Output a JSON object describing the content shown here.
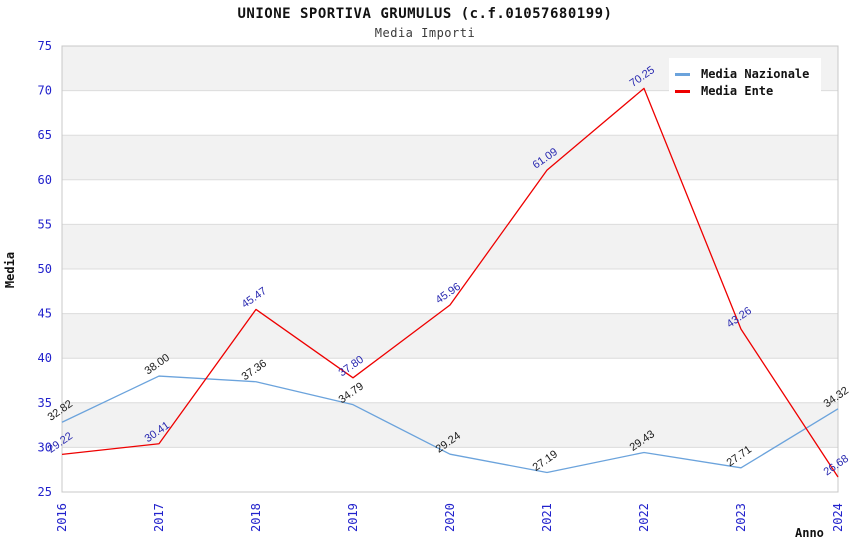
{
  "chart": {
    "title": "UNIONE SPORTIVA GRUMULUS (c.f.01057680199)",
    "subtitle": "Media Importi"
  },
  "chart_data": {
    "type": "line",
    "title": "UNIONE SPORTIVA GRUMULUS (c.f.01057680199)",
    "subtitle": "Media Importi",
    "xlabel": "Anno",
    "ylabel": "Media",
    "categories": [
      "2016",
      "2017",
      "2018",
      "2019",
      "2020",
      "2021",
      "2022",
      "2023",
      "2024"
    ],
    "series": [
      {
        "name": "Media Nazionale",
        "color": "#6BA3DC",
        "label_color": "#1a1a1a",
        "values": [
          32.82,
          38.0,
          37.36,
          34.79,
          29.24,
          27.19,
          29.43,
          27.71,
          34.32
        ]
      },
      {
        "name": "Media Ente",
        "color": "#EE0000",
        "label_color": "#2828B0",
        "values": [
          29.22,
          30.41,
          45.47,
          37.8,
          45.96,
          61.09,
          70.25,
          43.26,
          26.68
        ]
      }
    ],
    "ylim": [
      25,
      75
    ],
    "ytick_step": 5,
    "yticks": [
      25,
      30,
      35,
      40,
      45,
      50,
      55,
      60,
      65,
      70,
      75
    ],
    "grid": true,
    "band_color": "#F2F2F2",
    "gridline_color": "#DCDCDC",
    "plot_border_color": "#C8C8C8",
    "tick_label_color": "#2222CC",
    "legend_position": "top-right"
  }
}
